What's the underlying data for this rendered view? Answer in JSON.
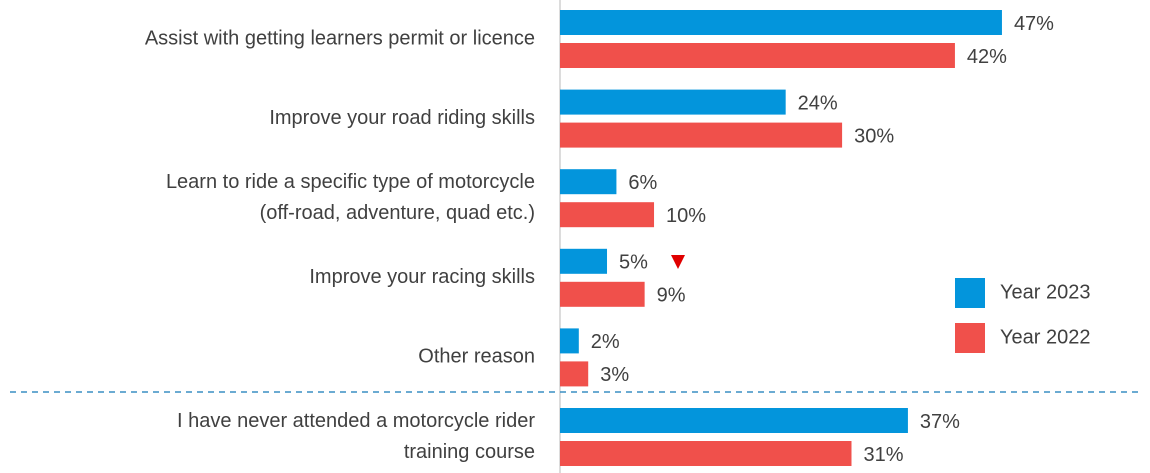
{
  "chart_data": {
    "type": "hbar",
    "categories": [
      [
        "Assist with getting learners permit or licence"
      ],
      [
        "Improve your road riding skills"
      ],
      [
        "Learn to ride a specific type of motorcycle",
        "(off-road, adventure, quad etc.)"
      ],
      [
        "Improve your racing skills"
      ],
      [
        "Other reason"
      ],
      [
        "I have never attended a motorcycle rider",
        "training course"
      ]
    ],
    "series": [
      {
        "name": "Year 2023",
        "color": "#0395dc",
        "values": [
          47,
          24,
          6,
          5,
          2,
          37
        ],
        "value_labels": [
          "47%",
          "24%",
          "6%",
          "5%",
          "2%",
          "37%"
        ]
      },
      {
        "name": "Year 2022",
        "color": "#f0504b",
        "values": [
          42,
          30,
          10,
          9,
          3,
          31
        ],
        "value_labels": [
          "42%",
          "30%",
          "10%",
          "9%",
          "3%",
          "31%"
        ]
      }
    ],
    "xlim": [
      0,
      62
    ],
    "legend": "right"
  }
}
